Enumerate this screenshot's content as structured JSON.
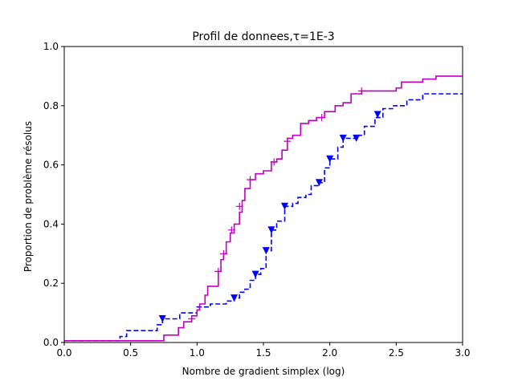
{
  "chart_data": {
    "type": "line",
    "title": "Profil de donnees,τ=1E-3",
    "xlabel": "Nombre de gradient simplex (log)",
    "ylabel": "Proportion de problème résolus",
    "xlim": [
      0.0,
      3.0
    ],
    "ylim": [
      0.0,
      1.0
    ],
    "xticks": [
      0.0,
      0.5,
      1.0,
      1.5,
      2.0,
      2.5,
      3.0
    ],
    "xtick_labels": [
      "0.0",
      "0.5",
      "1.0",
      "1.5",
      "2.0",
      "2.5",
      "3.0"
    ],
    "yticks": [
      0.0,
      0.2,
      0.4,
      0.6,
      0.8,
      1.0
    ],
    "ytick_labels": [
      "0.0",
      "0.2",
      "0.4",
      "0.6",
      "0.8",
      "1.0"
    ],
    "grid": false,
    "legend": "none",
    "series": [
      {
        "color": "#0000ff",
        "linestyle": "dashed",
        "marker": "triangle-down",
        "points": [
          [
            0.0,
            0.006
          ],
          [
            0.41,
            0.006
          ],
          [
            0.42,
            0.02
          ],
          [
            0.47,
            0.04
          ],
          [
            0.68,
            0.04
          ],
          [
            0.7,
            0.06
          ],
          [
            0.74,
            0.08
          ],
          [
            0.85,
            0.08
          ],
          [
            0.87,
            0.1
          ],
          [
            0.98,
            0.1
          ],
          [
            1.0,
            0.12
          ],
          [
            1.1,
            0.13
          ],
          [
            1.22,
            0.14
          ],
          [
            1.28,
            0.15
          ],
          [
            1.32,
            0.17
          ],
          [
            1.36,
            0.18
          ],
          [
            1.4,
            0.21
          ],
          [
            1.44,
            0.23
          ],
          [
            1.48,
            0.25
          ],
          [
            1.52,
            0.31
          ],
          [
            1.56,
            0.38
          ],
          [
            1.6,
            0.41
          ],
          [
            1.66,
            0.46
          ],
          [
            1.72,
            0.47
          ],
          [
            1.76,
            0.49
          ],
          [
            1.82,
            0.5
          ],
          [
            1.86,
            0.53
          ],
          [
            1.92,
            0.54
          ],
          [
            1.96,
            0.59
          ],
          [
            2.0,
            0.62
          ],
          [
            2.06,
            0.66
          ],
          [
            2.1,
            0.69
          ],
          [
            2.2,
            0.7
          ],
          [
            2.26,
            0.73
          ],
          [
            2.34,
            0.76
          ],
          [
            2.4,
            0.79
          ],
          [
            2.48,
            0.8
          ],
          [
            2.58,
            0.82
          ],
          [
            2.7,
            0.84
          ],
          [
            3.0,
            0.84
          ]
        ],
        "markers": [
          [
            0.74,
            0.08
          ],
          [
            1.28,
            0.15
          ],
          [
            1.44,
            0.23
          ],
          [
            1.52,
            0.31
          ],
          [
            1.56,
            0.38
          ],
          [
            1.66,
            0.46
          ],
          [
            1.92,
            0.54
          ],
          [
            2.0,
            0.62
          ],
          [
            2.1,
            0.69
          ],
          [
            2.2,
            0.69
          ],
          [
            2.36,
            0.77
          ]
        ]
      },
      {
        "color": "#bf00bf",
        "linestyle": "solid",
        "marker": "plus",
        "points": [
          [
            0.0,
            0.006
          ],
          [
            0.73,
            0.006
          ],
          [
            0.75,
            0.025
          ],
          [
            0.85,
            0.025
          ],
          [
            0.86,
            0.05
          ],
          [
            0.9,
            0.07
          ],
          [
            0.96,
            0.09
          ],
          [
            1.0,
            0.11
          ],
          [
            1.02,
            0.13
          ],
          [
            1.06,
            0.16
          ],
          [
            1.08,
            0.19
          ],
          [
            1.15,
            0.19
          ],
          [
            1.16,
            0.24
          ],
          [
            1.18,
            0.28
          ],
          [
            1.2,
            0.3
          ],
          [
            1.22,
            0.34
          ],
          [
            1.25,
            0.37
          ],
          [
            1.28,
            0.4
          ],
          [
            1.32,
            0.44
          ],
          [
            1.34,
            0.48
          ],
          [
            1.36,
            0.52
          ],
          [
            1.4,
            0.55
          ],
          [
            1.44,
            0.57
          ],
          [
            1.5,
            0.58
          ],
          [
            1.56,
            0.61
          ],
          [
            1.6,
            0.62
          ],
          [
            1.64,
            0.65
          ],
          [
            1.68,
            0.69
          ],
          [
            1.72,
            0.7
          ],
          [
            1.78,
            0.74
          ],
          [
            1.84,
            0.75
          ],
          [
            1.9,
            0.76
          ],
          [
            1.96,
            0.78
          ],
          [
            2.04,
            0.8
          ],
          [
            2.1,
            0.81
          ],
          [
            2.16,
            0.84
          ],
          [
            2.24,
            0.85
          ],
          [
            2.5,
            0.86
          ],
          [
            2.54,
            0.88
          ],
          [
            2.7,
            0.89
          ],
          [
            2.8,
            0.9
          ],
          [
            3.0,
            0.9
          ]
        ],
        "markers": [
          [
            0.96,
            0.08
          ],
          [
            1.16,
            0.24
          ],
          [
            1.2,
            0.3
          ],
          [
            1.26,
            0.38
          ],
          [
            1.32,
            0.46
          ],
          [
            1.4,
            0.55
          ],
          [
            1.58,
            0.61
          ],
          [
            1.68,
            0.68
          ],
          [
            1.94,
            0.76
          ],
          [
            2.24,
            0.85
          ]
        ]
      }
    ]
  }
}
